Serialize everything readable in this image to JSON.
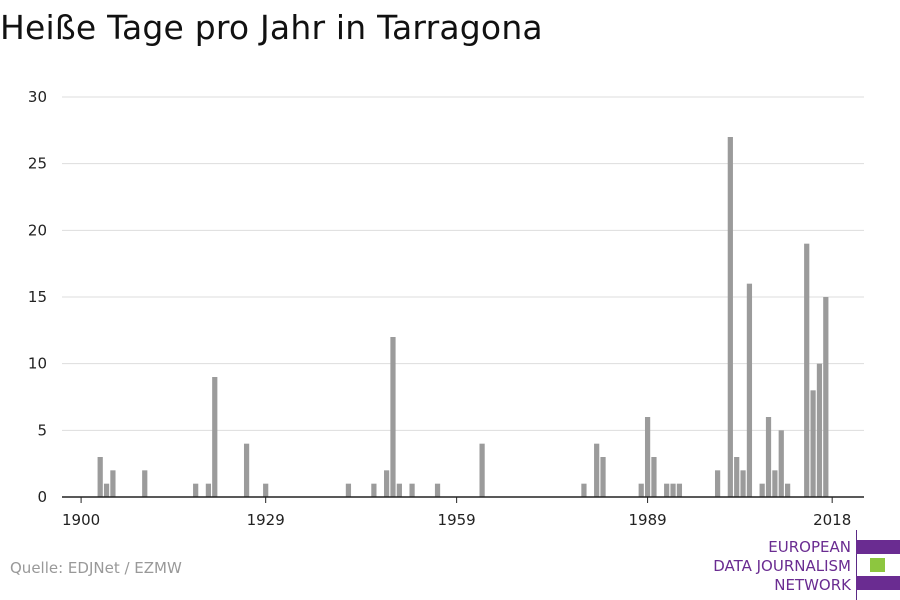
{
  "title": "Heiße Tage pro Jahr in Tarragona",
  "source": "Quelle: EDJNet / EZMW",
  "logo": {
    "lines": [
      "EUROPEAN",
      "DATA JOURNALISM",
      "NETWORK"
    ],
    "colors": [
      "#6a2c91",
      "#8dc63f",
      "#6a2c91"
    ]
  },
  "colors": {
    "bar": "#9b9b9b",
    "grid": "#dddddd",
    "axis": "#222222"
  },
  "chart_data": {
    "type": "bar",
    "title": "Heiße Tage pro Jahr in Tarragona",
    "xlabel": "",
    "ylabel": "",
    "xlim": [
      1897,
      2023
    ],
    "ylim": [
      0,
      30
    ],
    "yticks": [
      0,
      5,
      10,
      15,
      20,
      25,
      30
    ],
    "xticks": [
      1900,
      1929,
      1959,
      1989,
      2018
    ],
    "grid": true,
    "x": [
      1903,
      1904,
      1905,
      1910,
      1918,
      1920,
      1921,
      1926,
      1929,
      1942,
      1946,
      1948,
      1949,
      1950,
      1952,
      1956,
      1963,
      1979,
      1981,
      1982,
      1988,
      1989,
      1990,
      1992,
      1993,
      1994,
      2000,
      2002,
      2003,
      2004,
      2005,
      2007,
      2008,
      2009,
      2010,
      2011,
      2014,
      2015,
      2016,
      2017
    ],
    "values": [
      3,
      1,
      2,
      2,
      1,
      1,
      9,
      4,
      1,
      1,
      1,
      2,
      12,
      1,
      1,
      1,
      4,
      1,
      4,
      3,
      1,
      6,
      3,
      1,
      1,
      1,
      2,
      27,
      3,
      2,
      16,
      1,
      6,
      2,
      5,
      1,
      19,
      8,
      10,
      15
    ]
  }
}
